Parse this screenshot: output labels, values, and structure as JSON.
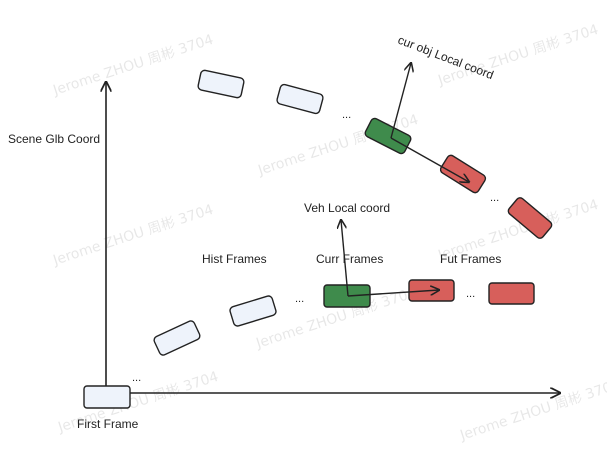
{
  "colors": {
    "hist_fill": "#eef3fb",
    "curr_fill": "#3f8b4c",
    "fut_fill": "#d75f5b",
    "stroke": "#222222"
  },
  "labels": {
    "scene_glb_coord": "Scene Glb Coord",
    "first_frame": "First Frame",
    "hist_frames": "Hist Frames",
    "curr_frames": "Curr Frames",
    "fut_frames": "Fut Frames",
    "veh_local_coord": "Veh Local coord",
    "cur_obj_local_coord": "cur obj Local coord"
  },
  "ellipsis": "...",
  "watermark": "Jerome ZHOU 周彬 3704"
}
